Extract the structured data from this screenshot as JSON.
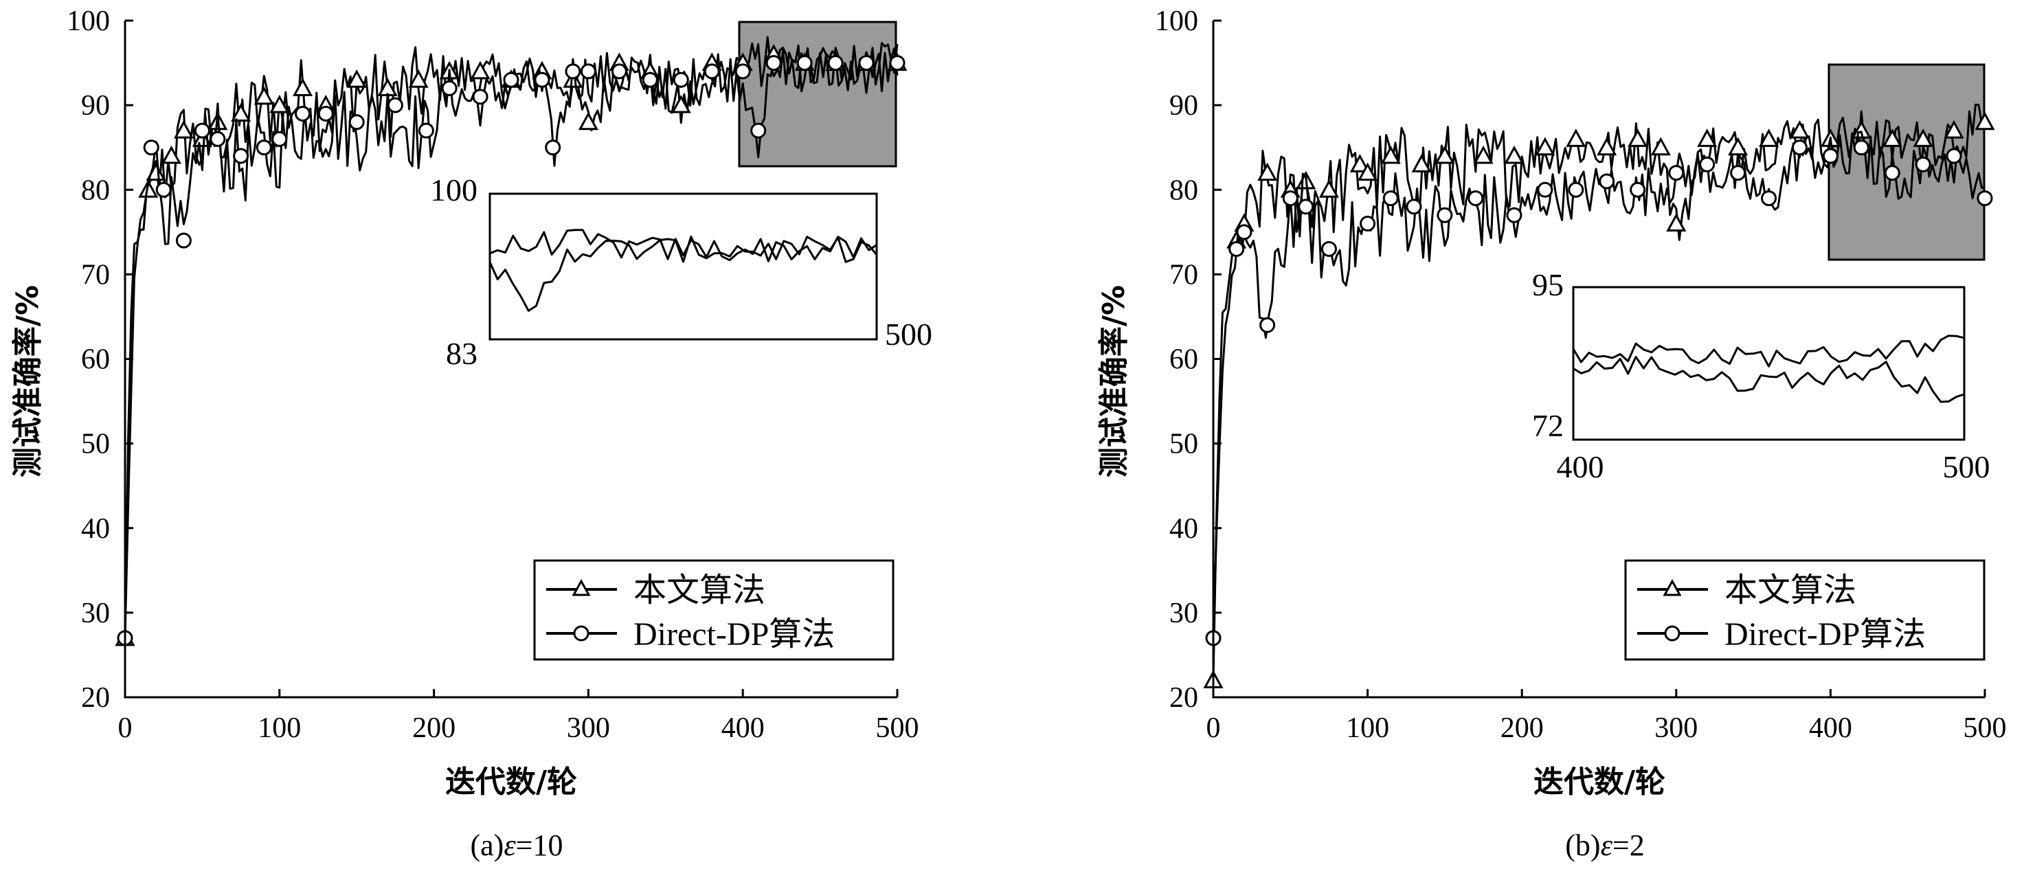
{
  "figure": {
    "panels": [
      {
        "caption_prefix": "(a)",
        "caption_symbol": "ε",
        "caption_value": "=10"
      },
      {
        "caption_prefix": "(b)",
        "caption_symbol": "ε",
        "caption_value": "=2"
      }
    ]
  },
  "chart_data": [
    {
      "type": "line",
      "title": "",
      "xlabel": "迭代数/轮",
      "ylabel": "测试准确率/%",
      "xlim": [
        0,
        500
      ],
      "ylim": [
        20,
        100
      ],
      "xticks": [
        0,
        100,
        200,
        300,
        400,
        500
      ],
      "yticks": [
        20,
        30,
        40,
        50,
        60,
        70,
        80,
        90,
        100
      ],
      "legend": {
        "placement": "bottom-right",
        "entries": [
          "本文算法",
          "Direct-DP算法"
        ]
      },
      "series": [
        {
          "name": "本文算法",
          "marker": "triangle",
          "x": [
            0,
            3,
            6,
            10,
            15,
            20,
            30,
            38,
            50,
            60,
            75,
            90,
            100,
            115,
            130,
            150,
            170,
            190,
            210,
            230,
            250,
            270,
            290,
            300,
            320,
            340,
            360,
            380,
            400,
            420,
            440,
            460,
            480,
            500
          ],
          "values": [
            27,
            62,
            72,
            75,
            80,
            82,
            84,
            87,
            86,
            88,
            89,
            91,
            90,
            92,
            90,
            93,
            92,
            93,
            94,
            94,
            93,
            94,
            93,
            88,
            95,
            94,
            90,
            95,
            95,
            96,
            95,
            95,
            95,
            95
          ]
        },
        {
          "name": "Direct-DP算法",
          "marker": "circle",
          "x": [
            0,
            3,
            6,
            10,
            17,
            25,
            38,
            50,
            60,
            75,
            90,
            100,
            115,
            130,
            150,
            175,
            195,
            210,
            230,
            250,
            270,
            277,
            290,
            300,
            320,
            340,
            360,
            380,
            400,
            410,
            420,
            440,
            460,
            480,
            500
          ],
          "values": [
            27,
            50,
            70,
            76,
            85,
            80,
            74,
            87,
            86,
            84,
            85,
            86,
            89,
            89,
            88,
            90,
            87,
            92,
            91,
            93,
            93,
            85,
            94,
            94,
            94,
            93,
            93,
            94,
            94,
            87,
            95,
            95,
            95,
            95,
            95
          ]
        }
      ],
      "highlight_region": {
        "x": [
          400,
          500
        ],
        "y": [
          83,
          100
        ]
      },
      "inset": {
        "xlabel_left": "",
        "xlabel_right": "500",
        "ymin_label": "83",
        "ymax_label": "100",
        "xlim": [
          400,
          500
        ],
        "ylim": [
          83,
          100
        ]
      }
    },
    {
      "type": "line",
      "title": "",
      "xlabel": "迭代数/轮",
      "ylabel": "测试准确率/%",
      "xlim": [
        0,
        500
      ],
      "ylim": [
        20,
        100
      ],
      "xticks": [
        0,
        100,
        200,
        300,
        400,
        500
      ],
      "yticks": [
        20,
        30,
        40,
        50,
        60,
        70,
        80,
        90,
        100
      ],
      "legend": {
        "placement": "bottom-right",
        "entries": [
          "本文算法",
          "Direct-DP算法"
        ]
      },
      "series": [
        {
          "name": "本文算法",
          "marker": "triangle",
          "x": [
            0,
            3,
            6,
            10,
            15,
            20,
            35,
            50,
            60,
            75,
            95,
            100,
            115,
            135,
            150,
            175,
            195,
            215,
            235,
            255,
            275,
            290,
            300,
            320,
            340,
            360,
            380,
            400,
            420,
            440,
            460,
            480,
            500
          ],
          "values": [
            22,
            50,
            65,
            70,
            74,
            76,
            82,
            80,
            81,
            80,
            83,
            82,
            84,
            83,
            84,
            84,
            84,
            85,
            86,
            85,
            86,
            85,
            76,
            86,
            85,
            86,
            87,
            86,
            87,
            86,
            86,
            87,
            88
          ]
        },
        {
          "name": "Direct-DP算法",
          "marker": "circle",
          "x": [
            0,
            3,
            6,
            10,
            15,
            20,
            35,
            50,
            60,
            75,
            100,
            115,
            130,
            150,
            170,
            195,
            215,
            235,
            255,
            275,
            300,
            320,
            340,
            360,
            380,
            400,
            420,
            440,
            460,
            480,
            500
          ],
          "values": [
            27,
            45,
            60,
            68,
            73,
            75,
            64,
            79,
            78,
            73,
            76,
            79,
            78,
            77,
            79,
            77,
            80,
            80,
            81,
            80,
            82,
            83,
            82,
            79,
            85,
            84,
            85,
            82,
            83,
            84,
            79
          ]
        }
      ],
      "highlight_region": {
        "x": [
          400,
          500
        ],
        "y": [
          72,
          95
        ]
      },
      "inset": {
        "xlabel_left": "400",
        "xlabel_right": "500",
        "ymin_label": "72",
        "ymax_label": "95",
        "xlim": [
          400,
          500
        ],
        "ylim": [
          72,
          95
        ]
      }
    }
  ]
}
